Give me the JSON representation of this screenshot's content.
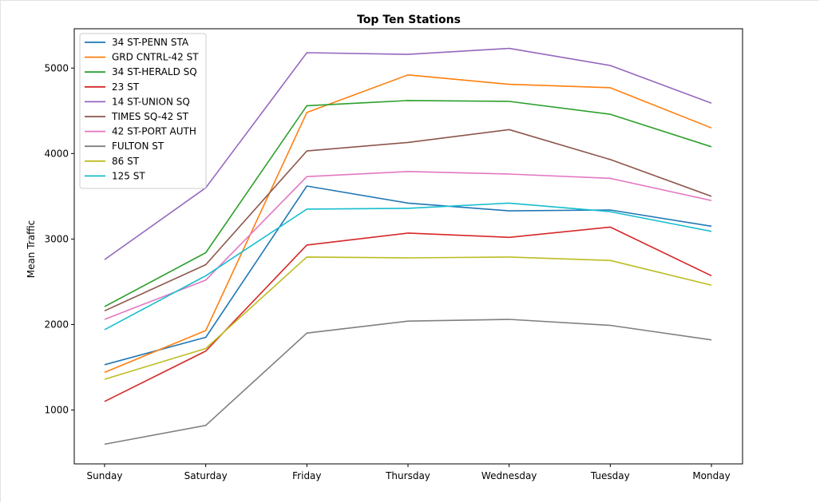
{
  "chart_data": {
    "type": "line",
    "title": "Top Ten Stations",
    "xlabel": "",
    "ylabel": "Mean Traffic",
    "categories": [
      "Sunday",
      "Saturday",
      "Friday",
      "Thursday",
      "Wednesday",
      "Tuesday",
      "Monday"
    ],
    "ylim": [
      370,
      5460
    ],
    "yticks": [
      1000,
      2000,
      3000,
      4000,
      5000
    ],
    "grid": false,
    "legend_position": "top-left",
    "series": [
      {
        "name": "34 ST-PENN STA",
        "color": "#1f77b4",
        "values": [
          1530,
          1850,
          3620,
          3420,
          3330,
          3340,
          3150
        ]
      },
      {
        "name": "GRD CNTRL-42 ST",
        "color": "#ff7f0e",
        "values": [
          1440,
          1930,
          4480,
          4920,
          4810,
          4770,
          4300
        ]
      },
      {
        "name": "34 ST-HERALD SQ",
        "color": "#2ca02c",
        "values": [
          2210,
          2840,
          4560,
          4620,
          4610,
          4460,
          4080
        ]
      },
      {
        "name": "23 ST",
        "color": "#d62728",
        "values": [
          1100,
          1690,
          2930,
          3070,
          3020,
          3140,
          2570
        ]
      },
      {
        "name": "14 ST-UNION SQ",
        "color": "#9467bd",
        "values": [
          2760,
          3600,
          5180,
          5160,
          5230,
          5030,
          4590
        ]
      },
      {
        "name": "TIMES SQ-42 ST",
        "color": "#8c564b",
        "values": [
          2160,
          2700,
          4030,
          4130,
          4280,
          3930,
          3500
        ]
      },
      {
        "name": "42 ST-PORT AUTH",
        "color": "#e377c2",
        "values": [
          2060,
          2520,
          3730,
          3790,
          3760,
          3710,
          3450
        ]
      },
      {
        "name": "FULTON ST",
        "color": "#7f7f7f",
        "values": [
          600,
          820,
          1900,
          2040,
          2060,
          1990,
          1820
        ]
      },
      {
        "name": "86 ST",
        "color": "#bcbd22",
        "values": [
          1360,
          1720,
          2790,
          2780,
          2790,
          2750,
          2460
        ]
      },
      {
        "name": "125 ST",
        "color": "#17becf",
        "values": [
          1940,
          2570,
          3350,
          3360,
          3420,
          3320,
          3090
        ]
      }
    ]
  }
}
